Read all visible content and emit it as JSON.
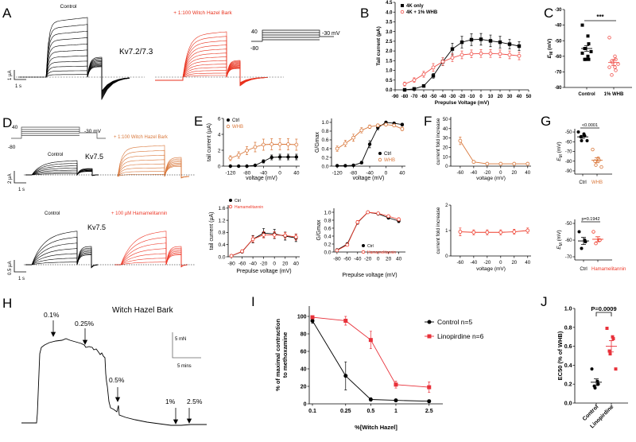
{
  "panel_letters": [
    "A",
    "B",
    "C",
    "D",
    "E",
    "F",
    "G",
    "H",
    "I",
    "J"
  ],
  "panel_a": {
    "control_label": "Control",
    "treatment_label": "+ 1:100  Witch Hazel Bark",
    "channel_label": "Kv7.2/7.3",
    "protocol": {
      "step": "40",
      "hold": "-80",
      "tail": "-30 mV"
    },
    "scale": {
      "current": "1 µA",
      "time": "1 s"
    },
    "colors": {
      "control": "#000000",
      "treatment": "#e8321e"
    }
  },
  "panel_d": {
    "protocol": {
      "step": "40",
      "hold": "-80",
      "tail": "-30 mV"
    },
    "row1": {
      "control_label": "Control",
      "channel_label": "Kv7.5",
      "treatment_label": "+ 1:100  Witch Hazel Bark",
      "scale": {
        "current": "2 µA",
        "time": "1 s"
      }
    },
    "row2": {
      "control_label": "Control",
      "channel_label": "Kv7.5",
      "treatment_label": "+ 100 µM  Hamamelitannin",
      "scale": {
        "current": "0.5 µA",
        "time": "1 s"
      }
    },
    "colors": {
      "whb": "#d9773a",
      "hamamelitannin": "#ee3a2a"
    }
  },
  "panel_h": {
    "title": "Witch Hazel Bark",
    "doses": [
      "0.1%",
      "0.25%",
      "0.5%",
      "1%",
      "2.5%"
    ],
    "scale": {
      "force": "5 mN",
      "time": "5 mins"
    }
  },
  "chart_data": [
    {
      "id": "B",
      "type": "line",
      "xlabel": "Prepulse Voltage (mV)",
      "ylabel": "Tail current (µA)",
      "xlim": [
        -90,
        50
      ],
      "ylim": [
        0,
        4.5
      ],
      "xticks": [
        "-90",
        "-80",
        "-70",
        "-60",
        "-50",
        "-40",
        "-30",
        "-20",
        "-10",
        "0",
        "10",
        "20",
        "30",
        "40",
        "50"
      ],
      "yticks": [
        "0.0",
        "0.5",
        "1.0",
        "1.5",
        "2.0",
        "2.5",
        "3.0",
        "3.5",
        "4.0",
        "4.5"
      ],
      "x": [
        -80,
        -70,
        -60,
        -50,
        -40,
        -30,
        -20,
        -10,
        0,
        10,
        20,
        30,
        40
      ],
      "legend": "top-left",
      "series": [
        {
          "name": "4K only",
          "color": "#000000",
          "marker": "sq",
          "y": [
            0.0,
            0.05,
            0.2,
            0.72,
            1.45,
            2.1,
            2.45,
            2.58,
            2.6,
            2.52,
            2.45,
            2.35,
            2.25
          ],
          "err": [
            0.02,
            0.03,
            0.05,
            0.12,
            0.2,
            0.3,
            0.3,
            0.3,
            0.3,
            0.3,
            0.3,
            0.25,
            0.22
          ]
        },
        {
          "name": "4K + 1% WHB",
          "color": "#f0504a",
          "marker": "co",
          "y": [
            0.3,
            0.5,
            0.8,
            1.15,
            1.45,
            1.65,
            1.8,
            1.85,
            1.87,
            1.87,
            1.85,
            1.8,
            1.75
          ],
          "err": [
            0.1,
            0.12,
            0.15,
            0.2,
            0.2,
            0.2,
            0.2,
            0.2,
            0.2,
            0.2,
            0.2,
            0.2,
            0.2
          ]
        }
      ]
    },
    {
      "id": "C",
      "type": "scatter",
      "ylabel": "E",
      "ylabel_sub": "M",
      "ylabel_unit": " (mV)",
      "ylim": [
        -80,
        -30
      ],
      "yticks": [
        "-30",
        "-40",
        "-50",
        "-60",
        "-70",
        "-80"
      ],
      "categories": [
        "Control",
        "1% WHB"
      ],
      "significance": "***",
      "groups": [
        {
          "name": "Control",
          "color": "#000000",
          "marker": "sq",
          "points": [
            -40,
            -47,
            -52,
            -55,
            -55,
            -57,
            -58,
            -60,
            -62,
            -62,
            -62
          ],
          "mean": -55,
          "sem": 1.8
        },
        {
          "name": "1% WHB",
          "color": "#f0504a",
          "marker": "co",
          "points": [
            -48,
            -60,
            -62,
            -63,
            -64,
            -65,
            -67,
            -67,
            -69,
            -72
          ],
          "mean": -64,
          "sem": 2.0
        }
      ]
    },
    {
      "id": "E1",
      "type": "line",
      "xlabel": "voltage (mV)",
      "ylabel": "tail current (µA)",
      "xlim": [
        -137,
        48
      ],
      "ylim": [
        0,
        6
      ],
      "xticks": [
        "-120",
        "-80",
        "-40",
        "0",
        "40"
      ],
      "yticks": [
        "0",
        "2",
        "4",
        "6"
      ],
      "x": [
        -120,
        -100,
        -80,
        -60,
        -40,
        -20,
        0,
        20,
        40
      ],
      "legend": "top-left",
      "series": [
        {
          "name": "Ctrl",
          "color": "#000000",
          "marker": "c",
          "y": [
            0,
            0,
            0,
            0.1,
            0.6,
            1.1,
            1.15,
            1.15,
            1.15
          ],
          "err": [
            0,
            0,
            0,
            0.05,
            0.2,
            0.3,
            0.35,
            0.35,
            0.35
          ]
        },
        {
          "name": "WHB",
          "color": "#d9773a",
          "marker": "co",
          "y": [
            1.0,
            1.4,
            1.95,
            2.4,
            2.7,
            2.75,
            2.75,
            2.75,
            2.7
          ],
          "err": [
            0.3,
            0.4,
            0.5,
            0.6,
            0.7,
            0.7,
            0.7,
            0.7,
            0.7
          ]
        }
      ]
    },
    {
      "id": "E2",
      "type": "line",
      "xlabel": "voltage (mV)",
      "ylabel": "G/Gmax",
      "xlim": [
        -134,
        48
      ],
      "ylim": [
        0,
        1.09
      ],
      "xticks": [
        "-120",
        "-80",
        "-40",
        "0",
        "40"
      ],
      "yticks": [
        "0.0",
        "0.2",
        "0.4",
        "0.6",
        "0.8",
        "1.0"
      ],
      "x": [
        -120,
        -100,
        -80,
        -60,
        -40,
        -20,
        0,
        20,
        40
      ],
      "legend": "bottom-right",
      "series": [
        {
          "name": "Ctrl",
          "color": "#000000",
          "marker": "c",
          "y": [
            0.01,
            0.01,
            0.02,
            0.08,
            0.5,
            0.88,
            1.0,
            0.98,
            0.95
          ],
          "err": [
            0,
            0,
            0.01,
            0.03,
            0.08,
            0.05,
            0.01,
            0.02,
            0.03
          ]
        },
        {
          "name": "WHB",
          "color": "#d9773a",
          "marker": "co",
          "y": [
            0.4,
            0.52,
            0.65,
            0.82,
            0.9,
            0.93,
            0.95,
            0.93,
            0.85
          ],
          "err": [
            0.06,
            0.07,
            0.08,
            0.06,
            0.04,
            0.03,
            0.03,
            0.03,
            0.04
          ]
        }
      ]
    },
    {
      "id": "E3",
      "type": "line",
      "xlabel": "Prepulse voltage (mV)",
      "ylabel": "tail current (µA)",
      "xlim": [
        -86,
        47
      ],
      "ylim": [
        0,
        1.7
      ],
      "xticks": [
        "-80",
        "-60",
        "-40",
        "-20",
        "0",
        "20",
        "40"
      ],
      "yticks": [
        "0.0",
        "0.4",
        "0.8",
        "1.2",
        "1.6"
      ],
      "x": [
        -80,
        -60,
        -40,
        -20,
        0,
        20,
        40
      ],
      "legend": "top-left",
      "series": [
        {
          "name": "Ctrl",
          "color": "#000000",
          "marker": "c",
          "y": [
            0.03,
            0.17,
            0.58,
            0.78,
            0.75,
            0.68,
            0.62
          ],
          "err": [
            0.02,
            0.05,
            0.12,
            0.15,
            0.15,
            0.13,
            0.12
          ]
        },
        {
          "name": "Hamamelitannin",
          "color": "#ee3a2a",
          "marker": "co",
          "y": [
            0.03,
            0.18,
            0.58,
            0.72,
            0.72,
            0.7,
            0.65
          ],
          "err": [
            0.02,
            0.05,
            0.1,
            0.1,
            0.1,
            0.1,
            0.1
          ]
        }
      ]
    },
    {
      "id": "E4",
      "type": "line",
      "xlabel": "Prepulse voltage (mV)",
      "ylabel": "G/Gmax",
      "xlim": [
        -86,
        53
      ],
      "ylim": [
        0,
        1.1
      ],
      "xticks": [
        "-80",
        "-60",
        "-40",
        "-20",
        "0",
        "20",
        "40"
      ],
      "yticks": [
        "0.0",
        "0.2",
        "0.4",
        "0.6",
        "0.8",
        "1.0"
      ],
      "x": [
        -80,
        -60,
        -40,
        -20,
        0,
        20,
        40
      ],
      "legend": "bottom-right",
      "series": [
        {
          "name": "Ctrl",
          "color": "#000000",
          "marker": "c",
          "y": [
            0.05,
            0.2,
            0.74,
            1.0,
            0.96,
            0.86,
            0.78
          ],
          "err": [
            0.02,
            0.03,
            0.04,
            0,
            0.02,
            0.03,
            0.04
          ]
        },
        {
          "name": "Hamamelitannin",
          "color": "#ee3a2a",
          "marker": "co",
          "y": [
            0.04,
            0.18,
            0.75,
            1.0,
            0.97,
            0.9,
            0.82
          ],
          "err": [
            0.02,
            0.03,
            0.04,
            0,
            0.02,
            0.03,
            0.04
          ]
        }
      ]
    },
    {
      "id": "F1",
      "type": "line",
      "xlabel": "voltage (mV)",
      "ylabel": "current fold increase",
      "xlim": [
        -74,
        45
      ],
      "ylim": [
        0,
        52.5
      ],
      "xticks": [
        "-60",
        "-40",
        "-20",
        "0",
        "20",
        "40"
      ],
      "yticks": [
        "0",
        "10",
        "20",
        "30",
        "40",
        "50"
      ],
      "x": [
        -60,
        -40,
        -20,
        0,
        20,
        40
      ],
      "series": [
        {
          "name": "WHB",
          "color": "#d9773a",
          "marker": "co",
          "y": [
            27,
            4.5,
            2.5,
            2.5,
            2.5,
            2.5
          ],
          "err": [
            4,
            0.8,
            0.5,
            0.5,
            0.5,
            0.5
          ]
        }
      ]
    },
    {
      "id": "F2",
      "type": "line",
      "xlabel": "voltage (mV)",
      "ylabel": "current fold increase",
      "xlim": [
        -74,
        45
      ],
      "ylim": [
        0,
        2
      ],
      "xticks": [
        "-60",
        "-40",
        "-20",
        "0",
        "20",
        "40"
      ],
      "yticks": [
        "0",
        "1",
        "2"
      ],
      "x": [
        -60,
        -40,
        -20,
        0,
        20,
        40
      ],
      "series": [
        {
          "name": "Hamamelitannin",
          "color": "#ee3a2a",
          "marker": "co",
          "y": [
            0.95,
            0.93,
            0.93,
            0.93,
            0.95,
            1.0
          ],
          "err": [
            0.15,
            0.1,
            0.1,
            0.1,
            0.1,
            0.1
          ]
        }
      ]
    },
    {
      "id": "G1",
      "type": "scatter",
      "ylabel": "E",
      "ylabel_sub": "M",
      "ylabel_unit": " (mV)",
      "ylim": [
        -93.3,
        -46.7
      ],
      "yticks": [
        "-50",
        "-60",
        "-70",
        "-80",
        "-90"
      ],
      "categories": [
        "Ctrl",
        "WHB"
      ],
      "significance": "<0.0001",
      "groups": [
        {
          "name": "Ctrl",
          "color": "#000000",
          "marker": "c",
          "points": [
            -50,
            -52,
            -54,
            -55,
            -59,
            -59
          ],
          "mean": -55,
          "sem": 1.5
        },
        {
          "name": "WHB",
          "color": "#d9773a",
          "marker": "co",
          "points": [
            -68,
            -77,
            -79,
            -80,
            -84,
            -86
          ],
          "mean": -79,
          "sem": 2.6
        }
      ]
    },
    {
      "id": "G2",
      "type": "scatter",
      "ylabel": "E",
      "ylabel_sub": "M",
      "ylabel_unit": " (mV)",
      "ylim": [
        -71.9,
        -47.6
      ],
      "yticks": [
        "-50",
        "-60",
        "-70"
      ],
      "categories": [
        "Ctrl",
        "Hamamelitannin"
      ],
      "significance": "p=0.1942",
      "groups": [
        {
          "name": "Ctrl",
          "color": "#000000",
          "marker": "c",
          "points": [
            -55,
            -60,
            -61,
            -65
          ],
          "mean": -60.5,
          "sem": 2.1
        },
        {
          "name": "Hamamelitannin",
          "color": "#ee3a2a",
          "marker": "co",
          "points": [
            -55,
            -60,
            -60,
            -62
          ],
          "mean": -59.5,
          "sem": 1.5
        }
      ]
    },
    {
      "id": "I",
      "type": "line",
      "xscale": "log",
      "xlabel": "%[Witch Hazel]",
      "ylabel": [
        "% of maximal contraction",
        "to methoxamine"
      ],
      "xlim": [
        0.0916,
        3.65
      ],
      "ylim": [
        0,
        111.8
      ],
      "xticks": [
        "0.1",
        "0.25",
        "0.5",
        "1",
        "2.5"
      ],
      "yticks": [
        "0",
        "20",
        "40",
        "60",
        "80",
        "100"
      ],
      "x": [
        0.1,
        0.25,
        0.5,
        1,
        2.5
      ],
      "legend": "right",
      "series": [
        {
          "name": "Control n=5",
          "color": "#000000",
          "marker": "c",
          "y": [
            95,
            32,
            5,
            4,
            3
          ],
          "err": [
            3,
            16,
            2,
            1.5,
            1.5
          ]
        },
        {
          "name": "Linopirdine n=6",
          "color": "#e8313a",
          "marker": "sq",
          "y": [
            99,
            95,
            73,
            22,
            19
          ],
          "err": [
            1.5,
            5,
            10,
            4,
            6
          ]
        }
      ]
    },
    {
      "id": "J",
      "type": "scatter",
      "ylabel": "EC50 (% of WHB)",
      "ylim": [
        0,
        1.0
      ],
      "yticks": [
        "0.0",
        "0.2",
        "0.4",
        "0.6",
        "0.8",
        "1.0"
      ],
      "categories": [
        "Control",
        "Linopirdine"
      ],
      "significance": "P=0.0009",
      "groups": [
        {
          "name": "Control",
          "color": "#000000",
          "marker": "c",
          "points": [
            0.36,
            0.23,
            0.2,
            0.18,
            0.16
          ],
          "mean": 0.22,
          "sem": 0.035
        },
        {
          "name": "Linopirdine",
          "color": "#e8313a",
          "marker": "sq",
          "points": [
            0.79,
            0.7,
            0.68,
            0.55,
            0.52,
            0.36
          ],
          "mean": 0.6,
          "sem": 0.06
        }
      ]
    }
  ]
}
